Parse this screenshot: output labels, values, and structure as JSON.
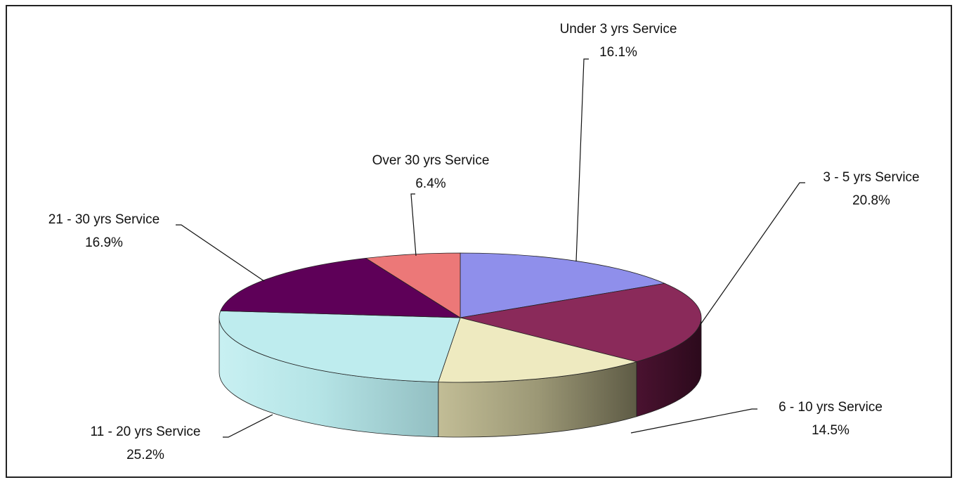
{
  "chart_data": {
    "type": "pie",
    "title": "",
    "categories": [
      "Under 3 yrs Service",
      "3 - 5 yrs Service",
      "6 - 10 yrs Service",
      "11 - 20 yrs Service",
      "21 - 30 yrs Service",
      "Over 30 yrs Service"
    ],
    "values": [
      16.1,
      20.8,
      14.5,
      25.2,
      16.9,
      6.4
    ],
    "value_labels": [
      "16.1%",
      "20.8%",
      "14.5%",
      "25.2%",
      "16.9%",
      "6.4%"
    ],
    "colors": [
      "#8f8feb",
      "#8a2a5a",
      "#eeeac0",
      "#beecee",
      "#5e0058",
      "#ec7878"
    ],
    "style": "3d-exploded-free",
    "legend": "none"
  }
}
